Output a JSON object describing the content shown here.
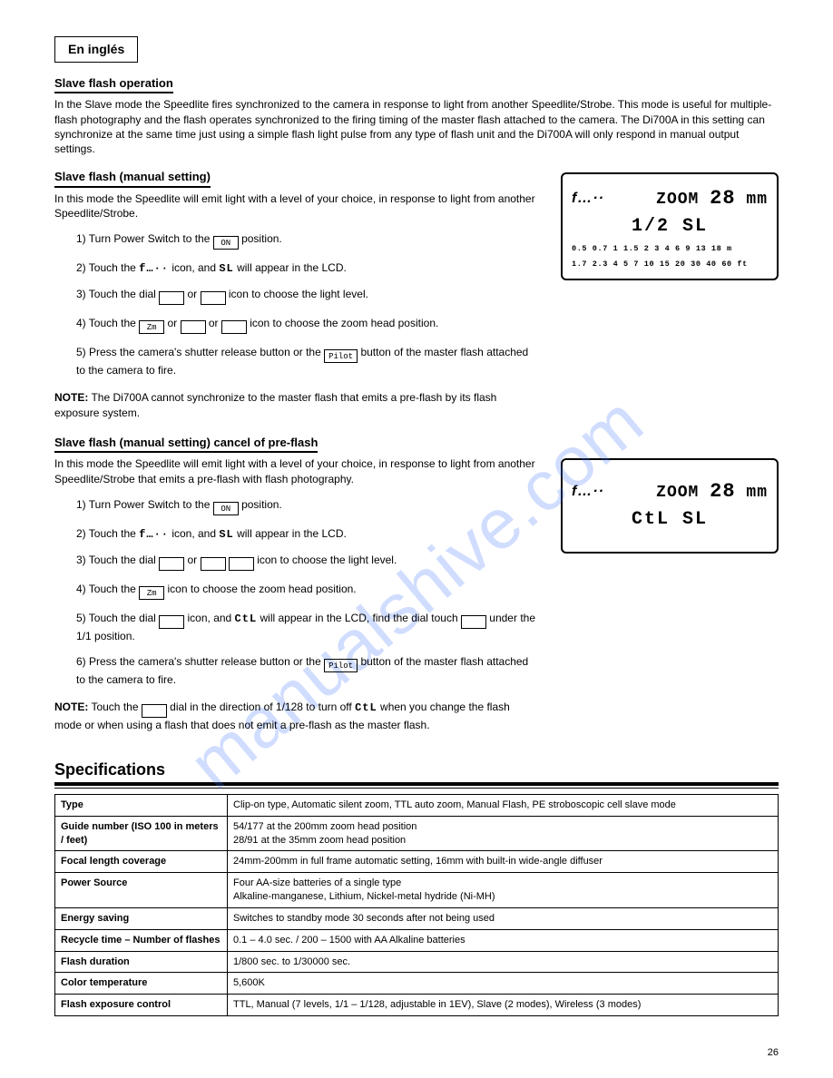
{
  "lang_title": "En inglés",
  "intro_heading": "Slave flash operation",
  "intro_text": "In the Slave mode the Speedlite fires synchronized to the camera in response to light from another Speedlite/Strobe. This mode is useful for multiple-flash photography and the flash operates synchronized to the firing timing of the master flash attached to the camera. The Di700A in this setting can synchronize at the same time just using a simple flash light pulse from any type of flash unit and the Di700A will only respond in manual output settings.",
  "s1_title": "Slave flash (manual setting)",
  "s1_body": "In this mode the Speedlite will emit light with a level of your choice, in response to light from another Speedlite/Strobe.",
  "s1_steps": [
    "1) Turn Power Switch to the <BOX>ON</BOX> position.",
    "2) Touch the <SEG>f…··</SEG> icon, and <SEG>SL</SEG> will appear in the LCD.",
    "3) Touch the dial <BOX> </BOX> or <BOX> </BOX> icon to choose the light level.",
    "4) Touch the <BOX>Zm</BOX> or <BOX> </BOX> or <BOX> </BOX> icon to choose the zoom head position.",
    "5) Press the camera's shutter release button or the <BOX>Pilot</BOX> button of the master flash attached to the camera to fire."
  ],
  "note1": "<b>NOTE:</b> The Di700A cannot synchronize to the master flash that emits a pre-flash by its flash exposure system.",
  "s2_title": "Slave flash (manual setting) cancel of pre-flash",
  "s2_body": "In this mode the Speedlite will emit light with a level of your choice, in response to light from another Speedlite/Strobe that emits a pre-flash with flash photography.",
  "s2_steps": [
    "1) Turn Power Switch to the <BOX>ON</BOX> position.",
    "2) Touch the <SEG>f…··</SEG> icon, and <SEG>SL</SEG> will appear in the LCD.",
    "3) Touch the dial <BOX> </BOX> or <BOX> </BOX> <BOX> </BOX> icon to choose the light level.",
    "4) Touch the <BOX>Zm</BOX> icon to choose the zoom head position.",
    "5) Touch the dial <BOX> </BOX> icon, and <SEG>CtL</SEG> will appear in the LCD, find the dial touch <BOX> </BOX> under the 1/1 position.",
    "6) Press the camera's shutter release button or the <BOX>Pilot</BOX> button of the master flash attached to the camera to fire."
  ],
  "note2": "<b>NOTE:</b> Touch the <BOX> </BOX> dial in the direction of 1/128 to turn off <SEG>CtL</SEG> when you change the flash mode or when using a flash that does not emit a pre-flash as the master flash.",
  "lcd1": {
    "bolt": "f…··",
    "zoom_label": "ZOOM",
    "zoom_value": "28",
    "zoom_unit": "mm",
    "line2": "1/2   SL",
    "scale1": "0.5 0.7 1 1.5 2 3 4 6 9 13 18 m",
    "scale2": "1.7 2.3 4 5 7 10 15 20 30 40 60 ft"
  },
  "lcd2": {
    "bolt": "f…··",
    "zoom_label": "ZOOM",
    "zoom_value": "28",
    "zoom_unit": "mm",
    "line2": "CtL SL"
  },
  "spec_heading": "Specifications",
  "spec_rows": [
    [
      "Type",
      "Clip-on type, Automatic silent zoom, TTL auto zoom, Manual Flash, PE stroboscopic cell slave mode"
    ],
    [
      "Guide number (ISO 100 in meters / feet)",
      "54/177 at the 200mm zoom head position<br>28/91 at the  35mm zoom head position"
    ],
    [
      "Focal length coverage",
      "24mm-200mm in full frame automatic setting, 16mm with built-in wide-angle diffuser"
    ],
    [
      "Power Source",
      "Four AA-size batteries of a single type<br>Alkaline-manganese, Lithium, Nickel-metal hydride (Ni-MH)"
    ],
    [
      "Energy saving",
      "Switches to standby mode 30 seconds after not being used"
    ],
    [
      "Recycle time – Number of flashes",
      "0.1 – 4.0 sec. / 200 – 1500 with AA Alkaline batteries"
    ],
    [
      "Flash duration",
      "1/800 sec. to 1/30000 sec."
    ],
    [
      "Color temperature",
      "5,600K"
    ],
    [
      "Flash exposure control",
      "TTL, Manual (7 levels, 1/1 – 1/128, adjustable in 1EV), Slave (2 modes), Wireless (3 modes)"
    ]
  ],
  "page_number": "26"
}
